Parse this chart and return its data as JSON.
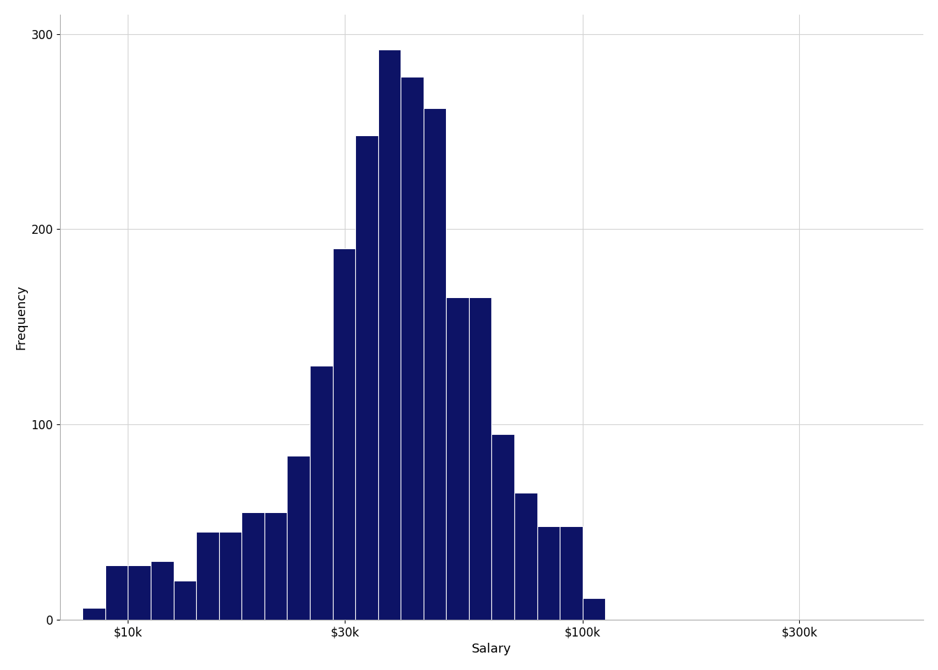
{
  "bar_heights": [
    6,
    28,
    28,
    30,
    20,
    45,
    45,
    55,
    55,
    84,
    130,
    190,
    248,
    292,
    278,
    262,
    165,
    165,
    95,
    65,
    48,
    48,
    11
  ],
  "log_left_edges": [
    3.9,
    3.95,
    4.0,
    4.05,
    4.1,
    4.15,
    4.2,
    4.25,
    4.3,
    4.35,
    4.4,
    4.45,
    4.5,
    4.55,
    4.6,
    4.65,
    4.7,
    4.75,
    4.8,
    4.85,
    4.9,
    4.95,
    5.0
  ],
  "bin_width": 0.05,
  "bar_color": "#0D1366",
  "bar_edgecolor": "#ffffff",
  "bar_linewidth": 0.8,
  "xlabel": "Salary",
  "ylabel": "Frequency",
  "ylim": [
    0,
    310
  ],
  "yticks": [
    0,
    100,
    200,
    300
  ],
  "xlim_log": [
    3.85,
    5.75
  ],
  "xtick_positions": [
    4.0,
    4.477,
    5.0,
    5.477
  ],
  "xtick_labels": [
    "$10k",
    "$30k",
    "$100k",
    "$300k"
  ],
  "background_color": "#ffffff",
  "grid_color": "#d3d3d3",
  "axis_fontsize": 13,
  "tick_fontsize": 12
}
